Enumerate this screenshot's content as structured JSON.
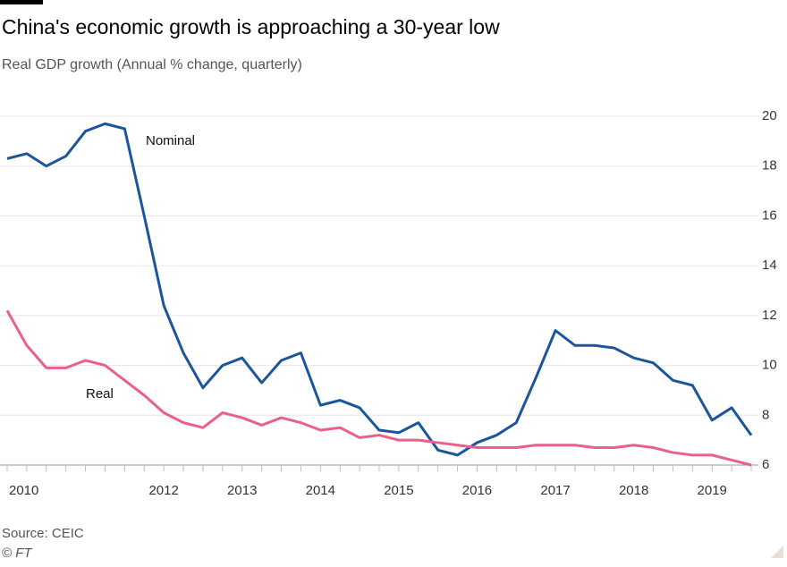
{
  "chart_data": {
    "type": "line",
    "title": "China's economic growth is approaching a 30-year low",
    "subtitle": "Real GDP growth (Annual % change, quarterly)",
    "source": "Source: CEIC",
    "credit": "© FT",
    "categories": [
      "2010",
      null,
      null,
      null,
      null,
      null,
      null,
      null,
      "2012",
      null,
      null,
      null,
      "2013",
      null,
      null,
      null,
      "2014",
      null,
      null,
      null,
      "2015",
      null,
      null,
      null,
      "2016",
      null,
      null,
      null,
      "2017",
      null,
      null,
      null,
      "2018",
      null,
      null,
      null,
      "2019",
      null,
      null
    ],
    "series": [
      {
        "name": "Nominal",
        "color": "#1a5699",
        "values": [
          18.3,
          18.5,
          18.0,
          18.4,
          19.4,
          19.7,
          19.5,
          16.0,
          12.4,
          10.5,
          9.1,
          10.0,
          10.3,
          9.3,
          10.2,
          10.5,
          8.4,
          8.6,
          8.3,
          7.4,
          7.3,
          7.7,
          6.6,
          6.4,
          6.9,
          7.2,
          7.7,
          9.5,
          11.4,
          10.8,
          10.8,
          10.7,
          10.3,
          10.1,
          9.4,
          9.2,
          7.8,
          8.3,
          7.2
        ]
      },
      {
        "name": "Real",
        "color": "#e8608f",
        "values": [
          12.2,
          10.8,
          9.9,
          9.9,
          10.2,
          10.0,
          9.4,
          8.8,
          8.1,
          7.7,
          7.5,
          8.1,
          7.9,
          7.6,
          7.9,
          7.7,
          7.4,
          7.5,
          7.1,
          7.2,
          7.0,
          7.0,
          6.9,
          6.8,
          6.7,
          6.7,
          6.7,
          6.8,
          6.8,
          6.8,
          6.7,
          6.7,
          6.8,
          6.7,
          6.5,
          6.4,
          6.4,
          6.2,
          6.0
        ]
      }
    ],
    "ylim": [
      6,
      20
    ],
    "yticks": [
      6,
      8,
      10,
      12,
      14,
      16,
      18,
      20
    ],
    "grid": true
  }
}
